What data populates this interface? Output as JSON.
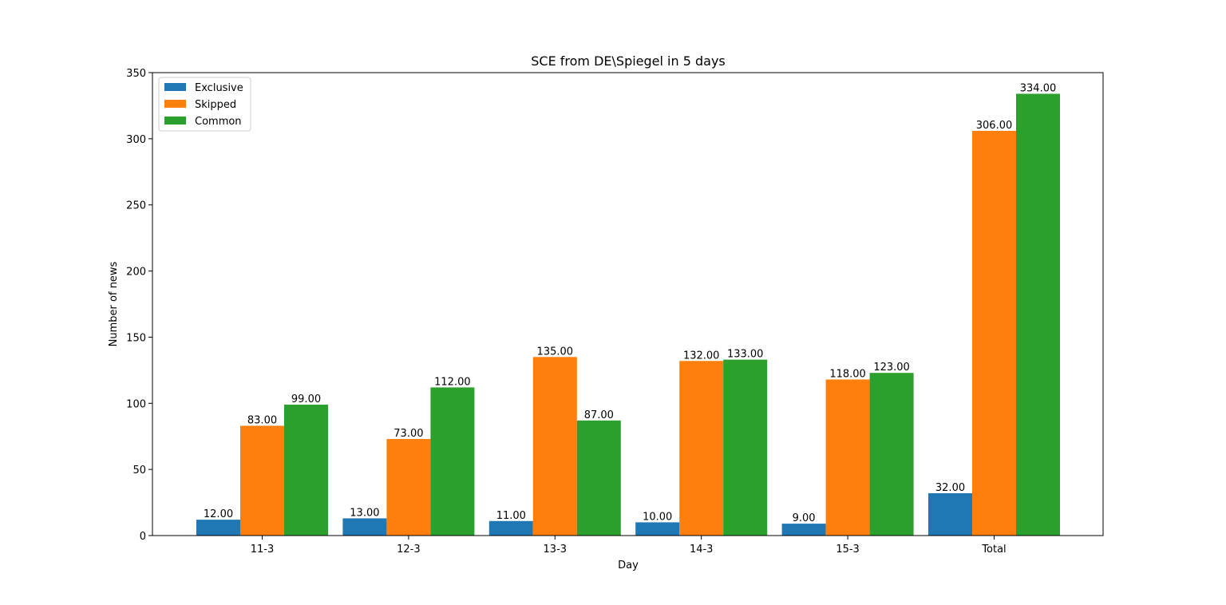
{
  "chart_data": {
    "type": "bar",
    "title": "SCE from DE\\Spiegel in 5 days",
    "xlabel": "Day",
    "ylabel": "Number of news",
    "categories": [
      "11-3",
      "12-3",
      "13-3",
      "14-3",
      "15-3",
      "Total"
    ],
    "series": [
      {
        "name": "Exclusive",
        "color": "#1f77b4",
        "values": [
          12,
          13,
          11,
          10,
          9,
          32
        ],
        "labels": [
          "12.00",
          "13.00",
          "11.00",
          "10.00",
          "9.00",
          "32.00"
        ]
      },
      {
        "name": "Skipped",
        "color": "#ff7f0e",
        "values": [
          83,
          73,
          135,
          132,
          118,
          306
        ],
        "labels": [
          "83.00",
          "73.00",
          "135.00",
          "132.00",
          "118.00",
          "306.00"
        ]
      },
      {
        "name": "Common",
        "color": "#2ca02c",
        "values": [
          99,
          112,
          87,
          133,
          123,
          334
        ],
        "labels": [
          "99.00",
          "112.00",
          "87.00",
          "133.00",
          "123.00",
          "334.00"
        ]
      }
    ],
    "ylim": [
      0,
      350
    ],
    "yticks": [
      0,
      50,
      100,
      150,
      200,
      250,
      300,
      350
    ],
    "ytick_labels": [
      "0",
      "50",
      "100",
      "150",
      "200",
      "250",
      "300",
      "350"
    ],
    "grid": false,
    "legend_position": "upper-left"
  }
}
